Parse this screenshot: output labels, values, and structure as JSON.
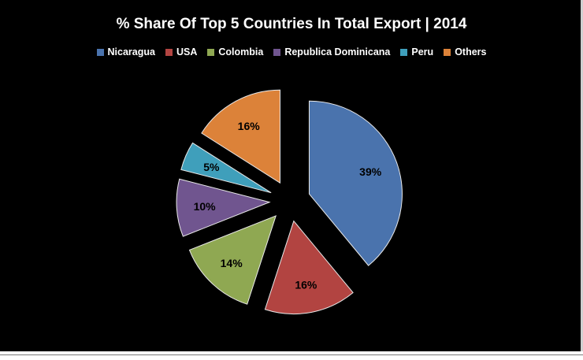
{
  "chart_data": {
    "type": "pie",
    "title": "% Share Of Top 5 Countries In Total Export | 2014",
    "legend_position": "top",
    "exploded": true,
    "slices": [
      {
        "label": "Nicaragua",
        "value": 39,
        "value_label": "39%",
        "color": "#4a73ad"
      },
      {
        "label": "USA",
        "value": 16,
        "value_label": "16%",
        "color": "#b24441"
      },
      {
        "label": "Colombia",
        "value": 14,
        "value_label": "14%",
        "color": "#8fa852"
      },
      {
        "label": "Republica Dominicana",
        "value": 10,
        "value_label": "10%",
        "color": "#70558f"
      },
      {
        "label": "Peru",
        "value": 5,
        "value_label": "5%",
        "color": "#3f9fbb"
      },
      {
        "label": "Others",
        "value": 16,
        "value_label": "16%",
        "color": "#dc8239"
      }
    ]
  }
}
